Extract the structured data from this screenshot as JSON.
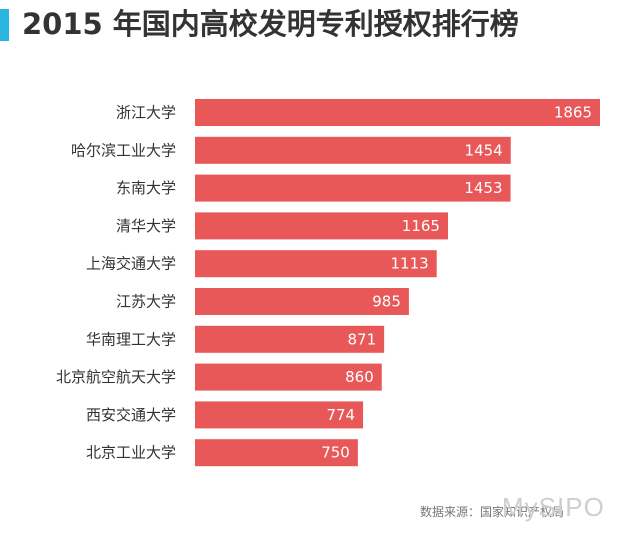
{
  "chart_data": {
    "type": "bar",
    "orientation": "horizontal",
    "title": "2015 年国内高校发明专利授权排行榜",
    "categories": [
      "浙江大学",
      "哈尔滨工业大学",
      "东南大学",
      "清华大学",
      "上海交通大学",
      "江苏大学",
      "华南理工大学",
      "北京航空航天大学",
      "西安交通大学",
      "北京工业大学"
    ],
    "values": [
      1865,
      1454,
      1453,
      1165,
      1113,
      985,
      871,
      860,
      774,
      750
    ],
    "bar_color": "#e85858",
    "data_labels": true,
    "grid": false,
    "legend": "none"
  },
  "accent_color": "#29b6e0",
  "source": "数据来源：国家知识产权局",
  "watermark": "MySIPO"
}
